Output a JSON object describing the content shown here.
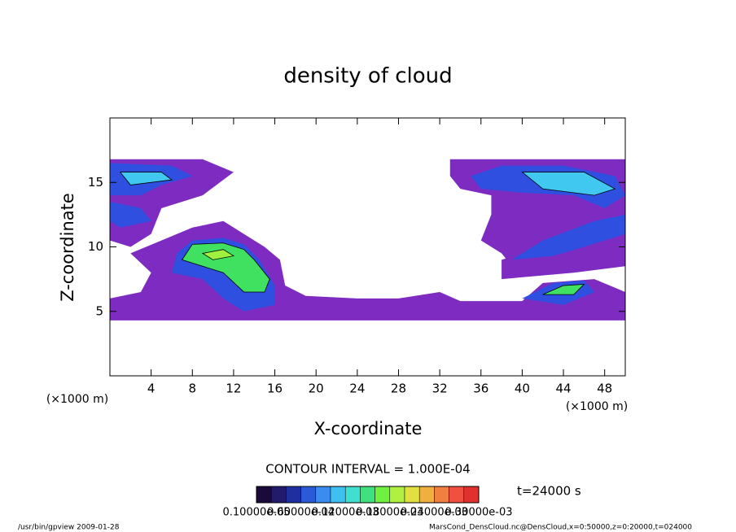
{
  "chart_data": {
    "type": "contour",
    "title": "density of cloud",
    "xlabel": "X-coordinate",
    "ylabel": "Z-coordinate",
    "x_unit_left": "(×1000 m)",
    "x_unit_right": "(×1000 m)",
    "xlim": [
      0,
      50
    ],
    "ylim": [
      0,
      20
    ],
    "xticks": [
      4,
      8,
      12,
      16,
      20,
      24,
      28,
      32,
      36,
      40,
      44,
      48
    ],
    "yticks": [
      5,
      10,
      15
    ],
    "contour_interval": "CONTOUR INTERVAL = 1.000E-04",
    "time_label": "t=24000 s",
    "footer_left": "/usr/bin/gpview  2009-01-28",
    "footer_right": "MarsCond_DensCloud.nc@DensCloud,x=0:50000,z=0:20000,t=024000",
    "colorbar": {
      "colors": [
        "#1a0a3a",
        "#221a6a",
        "#1f2fa0",
        "#2a5ad8",
        "#3a8cf0",
        "#3ec0f0",
        "#40e0d0",
        "#40e080",
        "#70f040",
        "#b0f040",
        "#e0e040",
        "#f0b040",
        "#f08040",
        "#f05040",
        "#e03030"
      ],
      "labels": [
        "0.10000e-05",
        "0.60000e-04",
        "0.12000e-03",
        "0.18000e-03",
        "0.24000e-03",
        "0.30000e-03"
      ]
    },
    "fields": [
      {
        "level": 1e-06,
        "color": "#7d2bc0",
        "polygons": [
          [
            [
              0,
              16.8
            ],
            [
              9,
              16.8
            ],
            [
              12,
              15.8
            ],
            [
              9,
              14
            ],
            [
              5,
              13
            ],
            [
              4,
              11
            ],
            [
              2,
              10
            ],
            [
              0,
              10.5
            ]
          ],
          [
            [
              0,
              6
            ],
            [
              3,
              6.5
            ],
            [
              4,
              8
            ],
            [
              2,
              9.5
            ],
            [
              5,
              10.5
            ],
            [
              8,
              11.5
            ],
            [
              11,
              12
            ],
            [
              13,
              11
            ],
            [
              15,
              10
            ],
            [
              16.5,
              9
            ],
            [
              17,
              7
            ],
            [
              19,
              6.2
            ],
            [
              24,
              6
            ],
            [
              28,
              6
            ],
            [
              32,
              6.5
            ],
            [
              34,
              5.8
            ],
            [
              40,
              5.8
            ],
            [
              42,
              7.2
            ],
            [
              47,
              7.5
            ],
            [
              50,
              6.5
            ],
            [
              50,
              4.3
            ],
            [
              0,
              4.3
            ]
          ],
          [
            [
              33,
              16.8
            ],
            [
              50,
              16.8
            ],
            [
              50,
              9
            ],
            [
              47,
              9.5
            ],
            [
              44,
              10
            ],
            [
              42,
              9.5
            ],
            [
              39,
              8.5
            ],
            [
              38,
              9.5
            ],
            [
              36,
              10.5
            ],
            [
              37,
              12.5
            ],
            [
              37,
              14
            ],
            [
              34,
              14.5
            ],
            [
              33,
              15.5
            ]
          ],
          [
            [
              38,
              7.5
            ],
            [
              45,
              8
            ],
            [
              50,
              8.5
            ],
            [
              50,
              10
            ],
            [
              42,
              10
            ],
            [
              38,
              9
            ]
          ]
        ]
      },
      {
        "level": 5e-05,
        "color": "#2f4fe0",
        "polygons": [
          [
            [
              0,
              16.5
            ],
            [
              6,
              16.3
            ],
            [
              8,
              15.5
            ],
            [
              5,
              14.8
            ],
            [
              3,
              14
            ],
            [
              0,
              14
            ]
          ],
          [
            [
              0,
              13.5
            ],
            [
              3,
              13
            ],
            [
              4,
              12
            ],
            [
              1,
              11.5
            ],
            [
              0,
              12
            ]
          ],
          [
            [
              6,
              8
            ],
            [
              6.5,
              9.5
            ],
            [
              8,
              10.5
            ],
            [
              11,
              10.7
            ],
            [
              13,
              10.2
            ],
            [
              14.5,
              9
            ],
            [
              16,
              7
            ],
            [
              16,
              5.5
            ],
            [
              13,
              5
            ],
            [
              11,
              6
            ],
            [
              9,
              7.5
            ]
          ],
          [
            [
              35,
              15.5
            ],
            [
              38,
              16.3
            ],
            [
              44,
              16.3
            ],
            [
              49,
              15.5
            ],
            [
              50,
              14
            ],
            [
              48,
              13
            ],
            [
              45,
              14
            ],
            [
              40,
              14.2
            ],
            [
              36,
              14.5
            ]
          ],
          [
            [
              40,
              6
            ],
            [
              43,
              7.2
            ],
            [
              46,
              7.4
            ],
            [
              47,
              6.5
            ],
            [
              44,
              5.5
            ]
          ],
          [
            [
              39,
              9
            ],
            [
              43,
              9.3
            ],
            [
              46,
              10
            ],
            [
              50,
              11
            ],
            [
              50,
              12.5
            ],
            [
              47,
              12
            ],
            [
              42,
              10.5
            ]
          ]
        ]
      },
      {
        "level": 0.0001,
        "color": "#40c8f0",
        "polygons": [
          [
            [
              40,
              15.8
            ],
            [
              46,
              15.8
            ],
            [
              49,
              14.5
            ],
            [
              47,
              14
            ],
            [
              42,
              14.5
            ]
          ],
          [
            [
              1,
              15.8
            ],
            [
              5,
              15.8
            ],
            [
              6,
              15.2
            ],
            [
              2,
              14.8
            ]
          ]
        ]
      },
      {
        "level": 0.00015,
        "color": "#40e060",
        "polygons": [
          [
            [
              7,
              9
            ],
            [
              8,
              10.2
            ],
            [
              11,
              10.3
            ],
            [
              13,
              9.8
            ],
            [
              14,
              9
            ],
            [
              15.5,
              7.5
            ],
            [
              15,
              6.5
            ],
            [
              13,
              6.5
            ],
            [
              11,
              8
            ]
          ],
          [
            [
              42,
              6.3
            ],
            [
              44,
              7
            ],
            [
              46,
              7.1
            ],
            [
              45,
              6.3
            ]
          ]
        ]
      },
      {
        "level": 0.0002,
        "color": "#a0f040",
        "polygons": [
          [
            [
              9,
              9.5
            ],
            [
              11,
              9.8
            ],
            [
              12,
              9.3
            ],
            [
              10,
              9
            ]
          ]
        ]
      }
    ]
  }
}
